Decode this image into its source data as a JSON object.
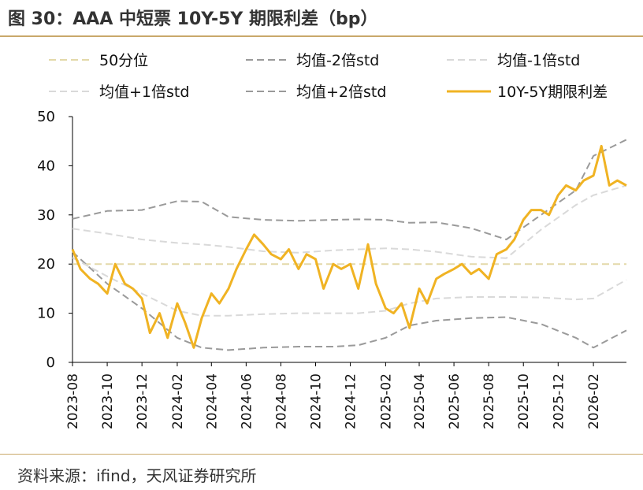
{
  "header": {
    "title": "图 30：AAA 中短票 10Y-5Y 期限利差（bp）"
  },
  "footer": {
    "source": "资料来源：ifind，天风证券研究所"
  },
  "chart_data": {
    "type": "line",
    "title": "AAA 中短票 10Y-5Y 期限利差（bp）",
    "xlabel": "",
    "ylabel": "",
    "ylim": [
      0,
      50
    ],
    "yticks": [
      0,
      10,
      20,
      30,
      40,
      50
    ],
    "xlim": [
      "2023-08-01",
      "2026-03-31"
    ],
    "xticks": [
      "2023-08",
      "2023-10",
      "2023-12",
      "2024-02",
      "2024-04",
      "2024-06",
      "2024-08",
      "2024-10",
      "2024-12",
      "2025-02",
      "2025-04",
      "2025-06",
      "2025-08",
      "2025-10",
      "2025-12",
      "2026-02"
    ],
    "grid": false,
    "legend_position": "top",
    "series": [
      {
        "name": "50分位",
        "style": "dashed",
        "color": "#e3d9a9",
        "x": [
          "2023-08-01",
          "2026-03-31"
        ],
        "values": [
          20,
          20
        ]
      },
      {
        "name": "均值-2倍std",
        "style": "dashed",
        "color": "#9a9a9a",
        "x": [
          "2023-08-01",
          "2023-10-01",
          "2023-12-01",
          "2024-02-01",
          "2024-03-15",
          "2024-05-01",
          "2024-07-01",
          "2024-09-01",
          "2024-11-01",
          "2024-12-15",
          "2025-02-01",
          "2025-03-15",
          "2025-05-01",
          "2025-07-01",
          "2025-09-01",
          "2025-11-01",
          "2026-01-01",
          "2026-02-01",
          "2026-03-31"
        ],
        "values": [
          22.5,
          16,
          11,
          5,
          3,
          2.5,
          3,
          3.2,
          3.2,
          3.5,
          5,
          7.5,
          8.5,
          9,
          9.2,
          7.8,
          5,
          3,
          6.5
        ]
      },
      {
        "name": "均值-1倍std",
        "style": "dashed",
        "color": "#d9d9d9",
        "x": [
          "2023-08-01",
          "2023-10-01",
          "2023-12-01",
          "2024-02-01",
          "2024-03-15",
          "2024-05-01",
          "2024-07-01",
          "2024-09-01",
          "2024-11-01",
          "2024-12-15",
          "2025-02-01",
          "2025-03-15",
          "2025-05-01",
          "2025-07-01",
          "2025-09-01",
          "2025-11-01",
          "2026-01-01",
          "2026-02-01",
          "2026-03-31"
        ],
        "values": [
          21.3,
          17.5,
          14,
          10.5,
          9.5,
          9.5,
          9.8,
          10,
          10,
          10,
          10.5,
          12,
          13,
          13.3,
          13.3,
          13.2,
          12.8,
          13,
          16.8
        ]
      },
      {
        "name": "均值+1倍std",
        "style": "dashed",
        "color": "#d9d9d9",
        "x": [
          "2023-08-01",
          "2023-10-01",
          "2023-12-01",
          "2024-02-01",
          "2024-03-15",
          "2024-05-01",
          "2024-07-01",
          "2024-09-01",
          "2024-11-01",
          "2024-12-15",
          "2025-02-01",
          "2025-03-15",
          "2025-05-01",
          "2025-07-01",
          "2025-09-01",
          "2025-11-01",
          "2026-01-01",
          "2026-02-01",
          "2026-03-31"
        ],
        "values": [
          27.2,
          26.2,
          25,
          24.3,
          24,
          23.5,
          22.6,
          22.3,
          22.8,
          23,
          23.2,
          23,
          22.5,
          21.5,
          21.2,
          27,
          32,
          34,
          36
        ]
      },
      {
        "name": "均值+2倍std",
        "style": "dashed",
        "color": "#9a9a9a",
        "x": [
          "2023-08-01",
          "2023-10-01",
          "2023-12-01",
          "2024-02-01",
          "2024-03-15",
          "2024-05-01",
          "2024-07-01",
          "2024-09-01",
          "2024-11-01",
          "2024-12-15",
          "2025-02-01",
          "2025-03-15",
          "2025-05-01",
          "2025-07-01",
          "2025-09-01",
          "2025-11-01",
          "2026-01-01",
          "2026-02-01",
          "2026-03-31"
        ],
        "values": [
          29.2,
          30.8,
          31,
          32.8,
          32.7,
          29.6,
          29,
          28.8,
          29,
          29.1,
          29,
          28.4,
          28.5,
          27.3,
          25,
          30,
          35,
          42,
          45.3
        ]
      },
      {
        "name": "10Y-5Y期限利差",
        "style": "solid",
        "color": "#f0b323",
        "x": [
          "2023-08-01",
          "2023-08-15",
          "2023-09-01",
          "2023-09-15",
          "2023-10-01",
          "2023-10-15",
          "2023-11-01",
          "2023-11-15",
          "2023-12-01",
          "2023-12-15",
          "2024-01-01",
          "2024-01-15",
          "2024-02-01",
          "2024-02-15",
          "2024-03-01",
          "2024-03-15",
          "2024-04-01",
          "2024-04-15",
          "2024-05-01",
          "2024-05-15",
          "2024-06-01",
          "2024-06-15",
          "2024-07-01",
          "2024-07-15",
          "2024-08-01",
          "2024-08-15",
          "2024-09-01",
          "2024-09-15",
          "2024-10-01",
          "2024-10-15",
          "2024-11-01",
          "2024-11-15",
          "2024-12-01",
          "2024-12-15",
          "2025-01-01",
          "2025-01-15",
          "2025-02-01",
          "2025-02-15",
          "2025-03-01",
          "2025-03-15",
          "2025-04-01",
          "2025-04-15",
          "2025-05-01",
          "2025-05-15",
          "2025-06-01",
          "2025-06-15",
          "2025-07-01",
          "2025-07-15",
          "2025-08-01",
          "2025-08-15",
          "2025-09-01",
          "2025-09-15",
          "2025-10-01",
          "2025-10-15",
          "2025-11-01",
          "2025-11-15",
          "2025-12-01",
          "2025-12-15",
          "2026-01-01",
          "2026-01-15",
          "2026-02-01",
          "2026-02-15",
          "2026-03-01",
          "2026-03-15",
          "2026-03-31"
        ],
        "values": [
          23,
          19,
          17,
          16,
          14,
          20,
          16,
          15,
          13,
          6,
          10,
          5,
          12,
          8,
          3,
          9,
          14,
          12,
          15,
          19,
          23,
          26,
          24,
          22,
          21,
          23,
          19,
          22,
          21,
          15,
          20,
          19,
          20,
          15,
          24,
          16,
          11,
          10,
          12,
          7,
          15,
          12,
          17,
          18,
          19,
          20,
          18,
          19,
          17,
          22,
          23,
          25,
          29,
          31,
          31,
          30,
          34,
          36,
          35,
          37,
          38,
          44,
          36,
          37,
          36
        ]
      }
    ]
  }
}
